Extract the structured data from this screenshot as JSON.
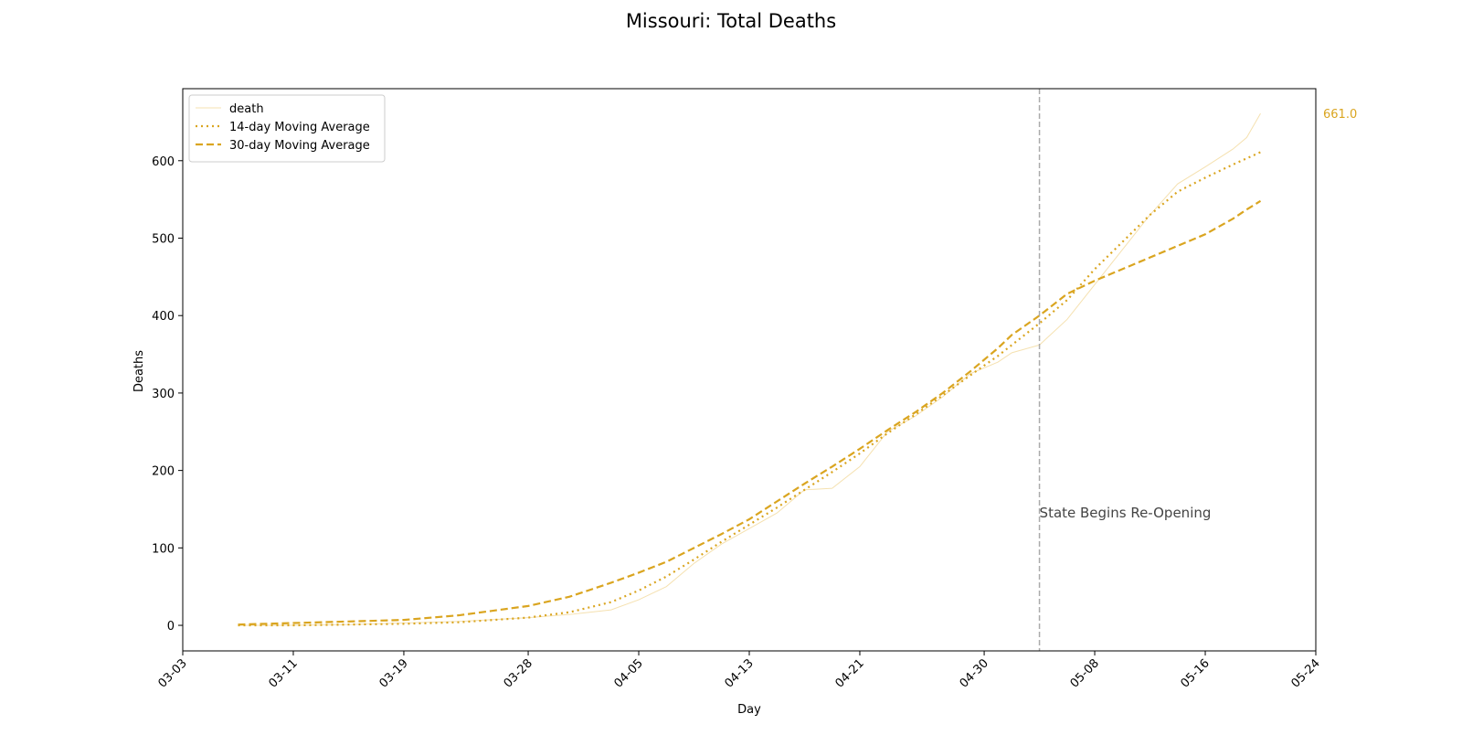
{
  "chart_data": {
    "type": "line",
    "title": "Missouri: Total Deaths",
    "x_label": "Day",
    "y_label": "Deaths",
    "x": [
      "03-07",
      "03-11",
      "03-15",
      "03-19",
      "03-23",
      "03-28",
      "03-31",
      "04-03",
      "04-05",
      "04-07",
      "04-09",
      "04-11",
      "04-13",
      "04-15",
      "04-17",
      "04-19",
      "04-21",
      "04-23",
      "04-25",
      "04-27",
      "04-29",
      "05-01",
      "05-02",
      "05-04",
      "05-06",
      "05-08",
      "05-10",
      "05-12",
      "05-14",
      "05-16",
      "05-18",
      "05-19",
      "05-20"
    ],
    "series": [
      {
        "name": "death",
        "color": "#f5e1b0",
        "style": "solid",
        "width": 1,
        "values": [
          0,
          0,
          1,
          3,
          5,
          10,
          14,
          20,
          33,
          50,
          80,
          105,
          125,
          145,
          175,
          177,
          205,
          250,
          270,
          295,
          325,
          340,
          352,
          362,
          395,
          440,
          485,
          530,
          570,
          592,
          615,
          630,
          661
        ]
      },
      {
        "name": "14-day Moving Average",
        "color": "#daa520",
        "style": "dotted",
        "width": 2.2,
        "values": [
          0,
          0,
          1,
          2,
          4,
          10,
          17,
          30,
          45,
          63,
          85,
          108,
          130,
          152,
          175,
          198,
          222,
          248,
          272,
          297,
          323,
          348,
          362,
          390,
          420,
          460,
          495,
          530,
          560,
          578,
          595,
          603,
          611
        ]
      },
      {
        "name": "30-day Moving Average",
        "color": "#daa520",
        "style": "dashed",
        "width": 2.2,
        "values": [
          1,
          3,
          5,
          7,
          13,
          25,
          37,
          55,
          68,
          82,
          100,
          118,
          137,
          160,
          183,
          205,
          228,
          252,
          275,
          300,
          328,
          358,
          375,
          400,
          428,
          445,
          460,
          475,
          490,
          505,
          525,
          537,
          548
        ]
      }
    ],
    "end_label": {
      "text": "661.0",
      "color": "#daa520"
    },
    "annotation": {
      "x": "05-04",
      "text": "State Begins Re-Opening",
      "color": "#aaaaaa"
    },
    "xlim": [
      "03-03",
      "05-24"
    ],
    "xticks": [
      "03-03",
      "03-11",
      "03-19",
      "03-28",
      "04-05",
      "04-13",
      "04-21",
      "04-30",
      "05-08",
      "05-16",
      "05-24"
    ],
    "ylim": [
      -33,
      693
    ],
    "yticks": [
      0,
      100,
      200,
      300,
      400,
      500,
      600
    ],
    "legend": "upper left",
    "grid": false
  }
}
